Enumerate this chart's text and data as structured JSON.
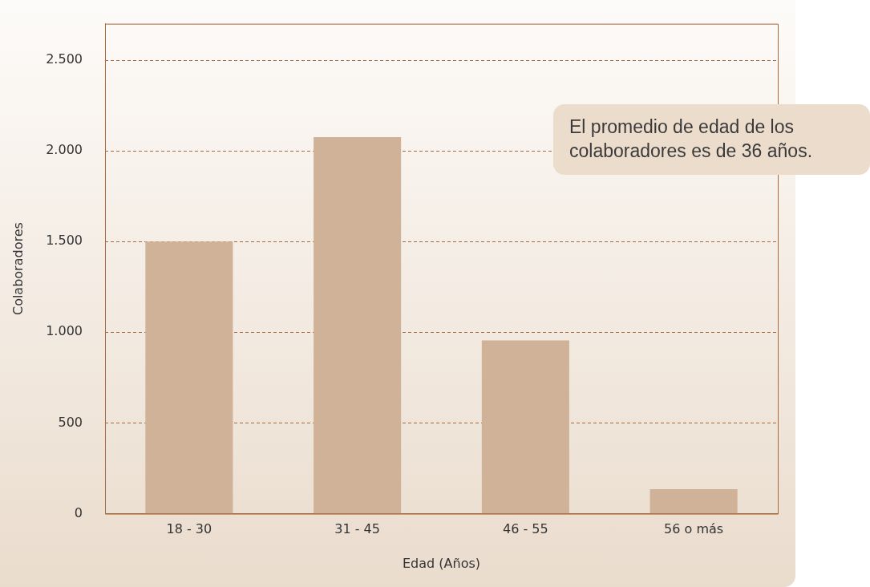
{
  "chart_data": {
    "type": "bar",
    "xlabel": "Edad (Años)",
    "ylabel": "Colaboradores",
    "categories": [
      "18 - 30",
      "31 - 45",
      "46 - 55",
      "56 o más"
    ],
    "values": [
      1500,
      2075,
      955,
      135
    ],
    "color": "#cfb297",
    "ylim": [
      0,
      2700
    ],
    "yticks": [
      {
        "value": 0,
        "label": "0"
      },
      {
        "value": 500,
        "label": "500"
      },
      {
        "value": 1000,
        "label": "1.000"
      },
      {
        "value": 1500,
        "label": "1.500"
      },
      {
        "value": 2000,
        "label": "2.000"
      },
      {
        "value": 2500,
        "label": "2.500"
      }
    ],
    "grid": "y",
    "legend": false,
    "annotations": [
      "El promedio de edad de los colaboradores es de 36 años."
    ]
  }
}
